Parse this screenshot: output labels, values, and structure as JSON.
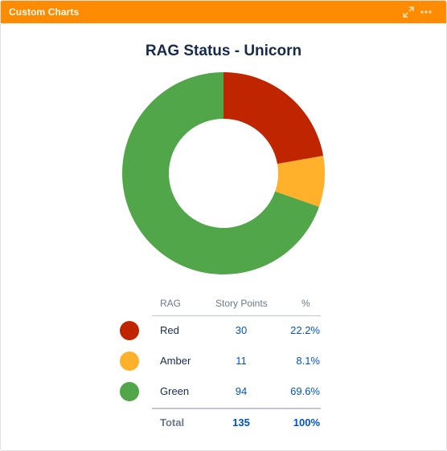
{
  "gadget": {
    "title": "Custom Charts",
    "header_color": "#ff8b00",
    "icons": [
      "expand-icon",
      "more-icon"
    ]
  },
  "chart_data": {
    "type": "pie",
    "title": "RAG Status - Unicorn",
    "categories": [
      "Red",
      "Amber",
      "Green"
    ],
    "values": [
      30,
      11,
      94
    ],
    "percent": [
      "22.2%",
      "8.1%",
      "69.6%"
    ],
    "colors": [
      "#bf2600",
      "#ffb12b",
      "#52a64a"
    ],
    "donut": true
  },
  "table": {
    "headers": {
      "rag": "RAG",
      "points": "Story Points",
      "percent": "%"
    },
    "rows": [
      {
        "name": "Red",
        "points": "30",
        "percent": "22.2%"
      },
      {
        "name": "Amber",
        "points": "11",
        "percent": "8.1%"
      },
      {
        "name": "Green",
        "points": "94",
        "percent": "69.6%"
      }
    ],
    "total": {
      "label": "Total",
      "points": "135",
      "percent": "100%"
    }
  }
}
